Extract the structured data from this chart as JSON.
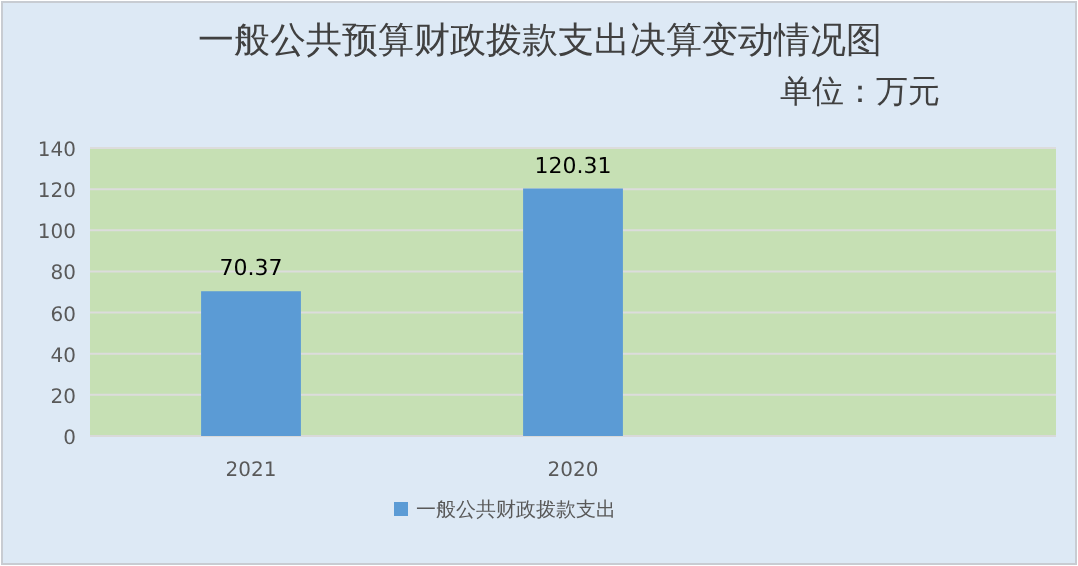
{
  "chart_data": {
    "type": "bar",
    "title": "一般公共预算财政拨款支出决算变动情况图",
    "subtitle": "单位：万元",
    "categories": [
      "2021",
      "2020",
      null
    ],
    "series": [
      {
        "name": "一般公共财政拨款支出",
        "color": "#5b9bd5",
        "values": [
          70.37,
          120.31,
          null
        ]
      }
    ],
    "ylim": [
      0,
      140
    ],
    "yticks": [
      0,
      20,
      40,
      60,
      80,
      100,
      120,
      140
    ],
    "grid": "y",
    "legend": "bottom",
    "data_labels": true
  }
}
